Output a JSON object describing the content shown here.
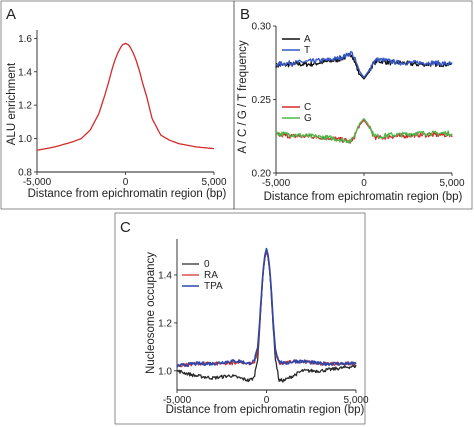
{
  "panel_letters": [
    "A",
    "B",
    "C"
  ],
  "chart_data": [
    {
      "panel": "A",
      "type": "line",
      "xlabel": "Distance from epichromatin region (bp)",
      "ylabel": "ALU enrichment",
      "xlim": [
        -5000,
        5000
      ],
      "ylim": [
        0.8,
        1.65
      ],
      "xticks": [
        -5000,
        0,
        5000
      ],
      "xtick_labels": [
        "-5,000",
        "0",
        "5,000"
      ],
      "yticks": [
        0.8,
        1.0,
        1.2,
        1.4,
        1.6
      ],
      "ytick_labels": [
        "0.8",
        "1.0",
        "1.2",
        "1.4",
        "1.6"
      ],
      "series": [
        {
          "color": "#d42a2a",
          "x": [
            -5000,
            -4000,
            -3000,
            -2500,
            -2000,
            -1500,
            -1200,
            -1000,
            -800,
            -600,
            -400,
            -200,
            0,
            200,
            400,
            600,
            800,
            1000,
            1200,
            1500,
            2000,
            2500,
            3000,
            4000,
            5000
          ],
          "y": [
            0.93,
            0.95,
            0.98,
            1.0,
            1.05,
            1.15,
            1.25,
            1.32,
            1.4,
            1.47,
            1.52,
            1.56,
            1.57,
            1.56,
            1.52,
            1.47,
            1.4,
            1.32,
            1.25,
            1.12,
            1.02,
            0.99,
            0.97,
            0.95,
            0.94
          ]
        }
      ]
    },
    {
      "panel": "B",
      "type": "line",
      "xlabel": "Distance from epichromatin region (bp)",
      "ylabel": "A / C / G / T frequency",
      "xlim": [
        -5000,
        5000
      ],
      "ylim": [
        0.2,
        0.3
      ],
      "xticks": [
        -5000,
        0,
        5000
      ],
      "xtick_labels": [
        "-5,000",
        "0",
        "5,000"
      ],
      "yticks": [
        0.2,
        0.25,
        0.3
      ],
      "ytick_labels": [
        "0.20",
        "0.25",
        "0.30"
      ],
      "legend_top": [
        "A",
        "T"
      ],
      "legend_bottom": [
        "C",
        "G"
      ],
      "series": [
        {
          "name": "A",
          "color": "#111111",
          "x": [
            -5000,
            -4000,
            -3000,
            -2000,
            -1500,
            -1000,
            -700,
            -500,
            -300,
            0,
            300,
            500,
            700,
            1000,
            1500,
            2000,
            3000,
            4000,
            5000
          ],
          "y": [
            0.273,
            0.274,
            0.274,
            0.276,
            0.277,
            0.279,
            0.281,
            0.275,
            0.268,
            0.264,
            0.269,
            0.274,
            0.276,
            0.276,
            0.275,
            0.275,
            0.274,
            0.274,
            0.274
          ]
        },
        {
          "name": "T",
          "color": "#3558c6",
          "x": [
            -5000,
            -4000,
            -3000,
            -2000,
            -1500,
            -1000,
            -700,
            -500,
            -300,
            0,
            300,
            500,
            700,
            1000,
            1500,
            2000,
            3000,
            4000,
            5000
          ],
          "y": [
            0.274,
            0.275,
            0.276,
            0.277,
            0.278,
            0.28,
            0.282,
            0.277,
            0.27,
            0.265,
            0.27,
            0.275,
            0.277,
            0.277,
            0.276,
            0.275,
            0.275,
            0.275,
            0.274
          ]
        },
        {
          "name": "C",
          "color": "#d42a2a",
          "x": [
            -5000,
            -4000,
            -3000,
            -2000,
            -1500,
            -1000,
            -700,
            -500,
            -300,
            0,
            300,
            500,
            700,
            1000,
            1500,
            2000,
            3000,
            4000,
            5000
          ],
          "y": [
            0.226,
            0.225,
            0.225,
            0.224,
            0.223,
            0.222,
            0.221,
            0.226,
            0.232,
            0.236,
            0.231,
            0.226,
            0.224,
            0.224,
            0.225,
            0.225,
            0.226,
            0.226,
            0.226
          ]
        },
        {
          "name": "G",
          "color": "#4fb84a",
          "x": [
            -5000,
            -4000,
            -3000,
            -2000,
            -1500,
            -1000,
            -700,
            -500,
            -300,
            0,
            300,
            500,
            700,
            1000,
            1500,
            2000,
            3000,
            4000,
            5000
          ],
          "y": [
            0.227,
            0.226,
            0.225,
            0.224,
            0.223,
            0.222,
            0.222,
            0.227,
            0.233,
            0.237,
            0.232,
            0.227,
            0.225,
            0.225,
            0.226,
            0.226,
            0.227,
            0.227,
            0.227
          ]
        }
      ]
    },
    {
      "panel": "C",
      "type": "line",
      "xlabel": "Distance from epichromatin region (bp)",
      "ylabel": "Nucleosome occupancy",
      "xlim": [
        -5000,
        5000
      ],
      "ylim": [
        0.92,
        1.55
      ],
      "xticks": [
        -5000,
        0,
        5000
      ],
      "xtick_labels": [
        "-5,000",
        "0",
        "5,000"
      ],
      "yticks": [
        1.0,
        1.2,
        1.4
      ],
      "ytick_labels": [
        "1.0",
        "1.2",
        "1.4"
      ],
      "legend": [
        "0",
        "RA",
        "TPA"
      ],
      "series": [
        {
          "name": "0",
          "color": "#2a2a2a",
          "x": [
            -5000,
            -4000,
            -3000,
            -2000,
            -1500,
            -1000,
            -700,
            -500,
            -400,
            -300,
            -200,
            -100,
            0,
            100,
            200,
            300,
            400,
            500,
            700,
            1000,
            1500,
            2000,
            3000,
            4000,
            5000
          ],
          "y": [
            1.0,
            0.98,
            0.97,
            0.98,
            0.97,
            0.96,
            0.97,
            1.05,
            1.15,
            1.28,
            1.4,
            1.47,
            1.5,
            1.47,
            1.4,
            1.28,
            1.15,
            1.05,
            0.96,
            0.96,
            0.98,
            1.0,
            1.0,
            1.01,
            1.02
          ]
        },
        {
          "name": "RA",
          "color": "#d42a2a",
          "x": [
            -5000,
            -4000,
            -3000,
            -2000,
            -1500,
            -1000,
            -700,
            -500,
            -400,
            -300,
            -200,
            -100,
            0,
            100,
            200,
            300,
            400,
            500,
            700,
            1000,
            1500,
            2000,
            3000,
            4000,
            5000
          ],
          "y": [
            1.02,
            1.03,
            1.03,
            1.03,
            1.04,
            1.03,
            1.03,
            1.08,
            1.17,
            1.29,
            1.4,
            1.47,
            1.5,
            1.47,
            1.4,
            1.29,
            1.17,
            1.08,
            1.03,
            1.03,
            1.04,
            1.04,
            1.03,
            1.03,
            1.03
          ]
        },
        {
          "name": "TPA",
          "color": "#2f48a8",
          "x": [
            -5000,
            -4000,
            -3000,
            -2000,
            -1500,
            -1000,
            -700,
            -500,
            -400,
            -300,
            -200,
            -100,
            0,
            100,
            200,
            300,
            400,
            500,
            700,
            1000,
            1500,
            2000,
            3000,
            4000,
            5000
          ],
          "y": [
            1.02,
            1.03,
            1.03,
            1.04,
            1.04,
            1.03,
            1.04,
            1.09,
            1.18,
            1.3,
            1.41,
            1.48,
            1.51,
            1.48,
            1.41,
            1.3,
            1.18,
            1.09,
            1.04,
            1.03,
            1.04,
            1.04,
            1.03,
            1.03,
            1.03
          ]
        }
      ]
    }
  ]
}
